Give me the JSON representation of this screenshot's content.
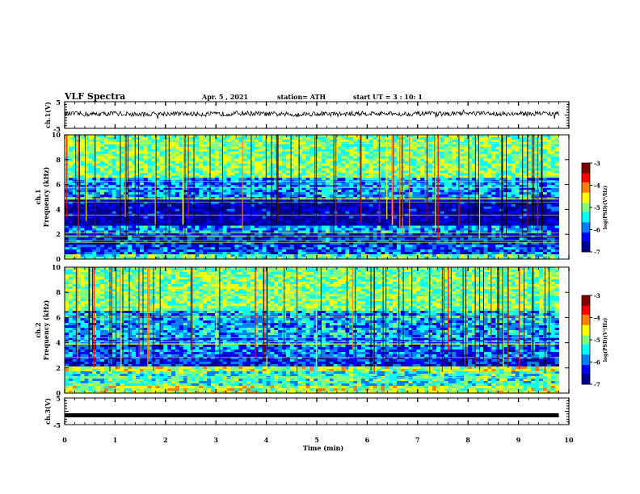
{
  "header": {
    "title": "VLF Spectra",
    "date": "Apr. 5 , 2021",
    "station": "station= ATH",
    "start": "start UT = 3 : 10: 1"
  },
  "colors": {
    "colormap": [
      "#00008f",
      "#0000ff",
      "#0080ff",
      "#00ffff",
      "#80ff80",
      "#ffff00",
      "#ff8000",
      "#ff0000",
      "#800000"
    ],
    "trace": "#000000",
    "axes": "#000000"
  },
  "chart_data": [
    {
      "type": "line",
      "panel": "ch1-timeseries",
      "ylabel": "ch.1(V)",
      "ylim": [
        -5,
        5
      ],
      "y_ticks": [
        "5",
        "-5"
      ],
      "xlim": [
        0,
        10
      ],
      "note": "noisy waveform centered slightly above 0 V",
      "x": [
        0,
        0.5,
        1,
        1.5,
        2,
        2.5,
        3,
        3.5,
        4,
        4.5,
        5,
        5.5,
        6,
        6.5,
        7,
        7.5,
        8,
        8.5,
        9,
        9.5,
        9.8
      ],
      "y": [
        0.5,
        0.3,
        0.6,
        0.2,
        0.5,
        0.4,
        0.3,
        0.7,
        0.4,
        0.2,
        0.5,
        0.3,
        0.6,
        0.4,
        0.5,
        0.3,
        0.6,
        0.5,
        0.4,
        0.7,
        0.3
      ]
    },
    {
      "type": "heatmap",
      "panel": "ch1-spectrogram",
      "ylabel": "ch.1 Frequency (kHz)",
      "ylim": [
        0,
        10
      ],
      "y_ticks": [
        "0",
        "2",
        "4",
        "6",
        "8",
        "10"
      ],
      "xlim": [
        0,
        9.8
      ],
      "colorbar": {
        "label": "log(PSD)(V²/Hz)",
        "range": [
          -7,
          -3
        ],
        "ticks": [
          "-3",
          "-4",
          "-5",
          "-6",
          "-7"
        ]
      },
      "bands_khz": [
        {
          "from": 0,
          "to": 0.4,
          "level": 0.45
        },
        {
          "from": 0.4,
          "to": 1.2,
          "level": 0.22
        },
        {
          "from": 1.2,
          "to": 2.2,
          "level": 0.18
        },
        {
          "from": 2.2,
          "to": 2.6,
          "level": 0.3
        },
        {
          "from": 2.6,
          "to": 3.2,
          "level": 0.05
        },
        {
          "from": 3.2,
          "to": 4.8,
          "level": 0.08
        },
        {
          "from": 4.8,
          "to": 6.5,
          "level": 0.3
        },
        {
          "from": 6.5,
          "to": 10,
          "level": 0.5
        }
      ]
    },
    {
      "type": "heatmap",
      "panel": "ch2-spectrogram",
      "ylabel": "ch.2 Frequency (kHz)",
      "ylim": [
        0,
        10
      ],
      "y_ticks": [
        "0",
        "2",
        "4",
        "6",
        "8",
        "10"
      ],
      "xlim": [
        0,
        9.8
      ],
      "colorbar": {
        "label": "log(PSD)(V²/Hz)",
        "range": [
          -7,
          -3
        ],
        "ticks": [
          "-3",
          "-4",
          "-5",
          "-6",
          "-7"
        ]
      },
      "bands_khz": [
        {
          "from": 0,
          "to": 0.6,
          "level": 0.55
        },
        {
          "from": 0.6,
          "to": 1.8,
          "level": 0.42
        },
        {
          "from": 1.8,
          "to": 2.2,
          "level": 0.55
        },
        {
          "from": 2.2,
          "to": 2.8,
          "level": 0.18
        },
        {
          "from": 2.8,
          "to": 4.4,
          "level": 0.25
        },
        {
          "from": 4.4,
          "to": 6.5,
          "level": 0.32
        },
        {
          "from": 6.5,
          "to": 10,
          "level": 0.5
        }
      ]
    },
    {
      "type": "line",
      "panel": "ch3-timeseries",
      "ylabel": "ch.3(V)",
      "ylim": [
        -5,
        5
      ],
      "y_ticks": [
        "5",
        "-5"
      ],
      "xlim": [
        0,
        10
      ],
      "x": [
        0,
        9.8
      ],
      "y": [
        -1.5,
        -1.5
      ]
    }
  ],
  "x_axis": {
    "label": "Time (min)",
    "ticks": [
      "0",
      "1",
      "2",
      "3",
      "4",
      "5",
      "6",
      "7",
      "8",
      "9",
      "10"
    ]
  }
}
